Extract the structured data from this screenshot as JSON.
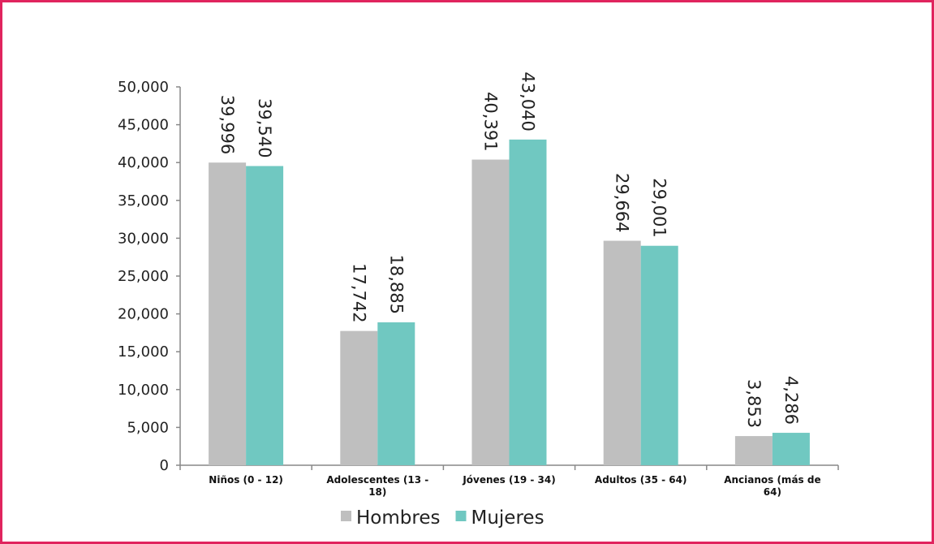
{
  "chart_data": {
    "type": "bar",
    "categories": [
      "Niños (0 - 12)",
      "Adolescentes (13 - 18)",
      "Jóvenes (19 - 34)",
      "Adultos (35 - 64)",
      "Ancianos (más de 64)"
    ],
    "category_lines": [
      [
        "Niños (0 - 12)"
      ],
      [
        "Adolescentes (13 -",
        "18)"
      ],
      [
        "Jóvenes (19 - 34)"
      ],
      [
        "Adultos (35 - 64)"
      ],
      [
        "Ancianos (más de",
        "64)"
      ]
    ],
    "series": [
      {
        "name": "Hombres",
        "color": "#bfbfbf",
        "values": [
          39996,
          17742,
          40391,
          29664,
          3853
        ],
        "labels": [
          "39,996",
          "17,742",
          "40,391",
          "29,664",
          "3,853"
        ]
      },
      {
        "name": "Mujeres",
        "color": "#70c8c1",
        "values": [
          39540,
          18885,
          43040,
          29001,
          4286
        ],
        "labels": [
          "39,540",
          "18,885",
          "43,040",
          "29,001",
          "4,286"
        ]
      }
    ],
    "ylim": [
      0,
      50000
    ],
    "yticks": [
      0,
      5000,
      10000,
      15000,
      20000,
      25000,
      30000,
      35000,
      40000,
      45000,
      50000
    ],
    "ytick_labels": [
      "0",
      "5,000",
      "10,000",
      "15,000",
      "20,000",
      "25,000",
      "30,000",
      "35,000",
      "40,000",
      "45,000",
      "50,000"
    ],
    "legend_position": "bottom",
    "grid": false,
    "frame_color": "#e0245e"
  }
}
